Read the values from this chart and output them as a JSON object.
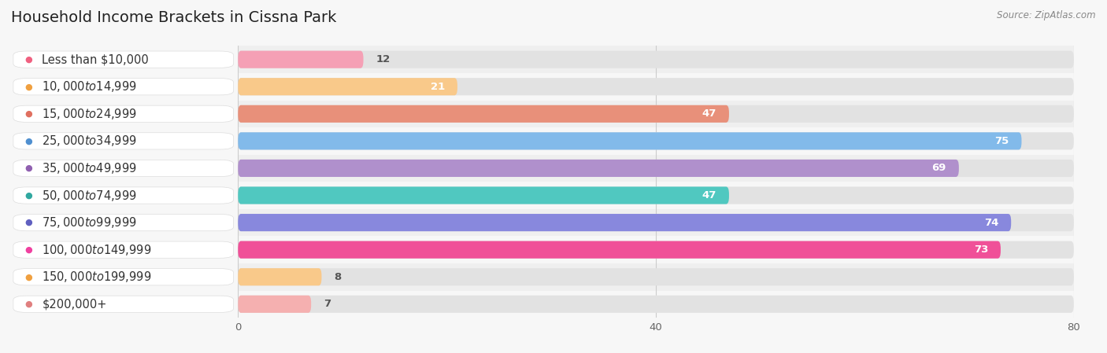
{
  "title": "Household Income Brackets in Cissna Park",
  "source": "Source: ZipAtlas.com",
  "categories": [
    "Less than $10,000",
    "$10,000 to $14,999",
    "$15,000 to $24,999",
    "$25,000 to $34,999",
    "$35,000 to $49,999",
    "$50,000 to $74,999",
    "$75,000 to $99,999",
    "$100,000 to $149,999",
    "$150,000 to $199,999",
    "$200,000+"
  ],
  "values": [
    12,
    21,
    47,
    75,
    69,
    47,
    74,
    73,
    8,
    7
  ],
  "bar_colors": [
    "#f5a0b5",
    "#f9c98a",
    "#e8907a",
    "#82baea",
    "#b090cc",
    "#50c8c0",
    "#8888dd",
    "#f05098",
    "#f9c98a",
    "#f5b0b0"
  ],
  "label_dot_colors": [
    "#f06080",
    "#f0a040",
    "#e07060",
    "#5090d0",
    "#9060b0",
    "#30a8a0",
    "#6060c0",
    "#f040a0",
    "#f0a040",
    "#e08080"
  ],
  "xlim": [
    0,
    80
  ],
  "xticks": [
    0,
    40,
    80
  ],
  "bg_color": "#f7f7f7",
  "row_bg_even": "#efefef",
  "row_bg_odd": "#f7f7f7",
  "title_fontsize": 14,
  "label_fontsize": 10.5,
  "value_fontsize": 9.5
}
